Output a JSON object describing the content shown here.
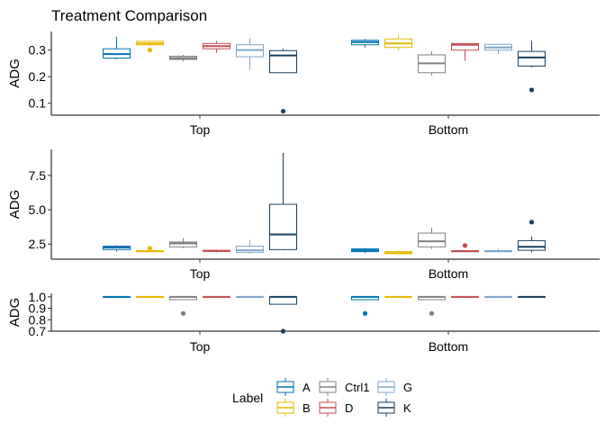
{
  "chart_data": {
    "type": "boxplot",
    "title": "Treatment Comparison",
    "legend": {
      "title": "Label",
      "placement": "bottom",
      "entries": [
        "A",
        "B",
        "Ctrl1",
        "D",
        "G",
        "K"
      ]
    },
    "colors": {
      "A": "#0072B2",
      "B": "#E6B800",
      "Ctrl1": "#7F7F7F",
      "D": "#C44E52",
      "G": "#7FA7CC",
      "K": "#173F5F"
    },
    "panels": [
      {
        "ylabel": "ADG",
        "ylim": [
          0.055,
          0.37
        ],
        "yticks": [
          0.1,
          0.2,
          0.3
        ],
        "ytick_labels": [
          "0.1",
          "0.2",
          "0.3"
        ],
        "categories": [
          "Top",
          "Bottom"
        ],
        "boxes": {
          "Top": [
            {
              "group": "A",
              "min": 0.265,
              "q1": 0.27,
              "median": 0.285,
              "q3": 0.305,
              "max": 0.35,
              "outliers": []
            },
            {
              "group": "B",
              "min": 0.315,
              "q1": 0.32,
              "median": 0.325,
              "q3": 0.333,
              "max": 0.335,
              "outliers": [
                0.3
              ]
            },
            {
              "group": "Ctrl1",
              "min": 0.258,
              "q1": 0.265,
              "median": 0.27,
              "q3": 0.277,
              "max": 0.282,
              "outliers": []
            },
            {
              "group": "D",
              "min": 0.29,
              "q1": 0.305,
              "median": 0.315,
              "q3": 0.325,
              "max": 0.335,
              "outliers": []
            },
            {
              "group": "G",
              "min": 0.225,
              "q1": 0.275,
              "median": 0.3,
              "q3": 0.32,
              "max": 0.345,
              "outliers": []
            },
            {
              "group": "K",
              "min": 0.213,
              "q1": 0.215,
              "median": 0.28,
              "q3": 0.298,
              "max": 0.305,
              "outliers": [
                0.07
              ]
            }
          ],
          "Bottom": [
            {
              "group": "A",
              "min": 0.31,
              "q1": 0.32,
              "median": 0.33,
              "q3": 0.337,
              "max": 0.342,
              "outliers": []
            },
            {
              "group": "B",
              "min": 0.3,
              "q1": 0.31,
              "median": 0.325,
              "q3": 0.342,
              "max": 0.355,
              "outliers": []
            },
            {
              "group": "Ctrl1",
              "min": 0.205,
              "q1": 0.215,
              "median": 0.25,
              "q3": 0.282,
              "max": 0.295,
              "outliers": []
            },
            {
              "group": "D",
              "min": 0.26,
              "q1": 0.3,
              "median": 0.32,
              "q3": 0.325,
              "max": 0.325,
              "outliers": []
            },
            {
              "group": "G",
              "min": 0.285,
              "q1": 0.3,
              "median": 0.31,
              "q3": 0.322,
              "max": 0.325,
              "outliers": []
            },
            {
              "group": "K",
              "min": 0.235,
              "q1": 0.24,
              "median": 0.272,
              "q3": 0.295,
              "max": 0.335,
              "outliers": [
                0.15
              ]
            }
          ]
        }
      },
      {
        "ylabel": "ADG",
        "ylim": [
          1.4,
          9.4
        ],
        "yticks": [
          2.5,
          5.0,
          7.5
        ],
        "ytick_labels": [
          "2.5",
          "5.0",
          "7.5"
        ],
        "categories": [
          "Top",
          "Bottom"
        ],
        "boxes": {
          "Top": [
            {
              "group": "A",
              "min": 1.95,
              "q1": 2.1,
              "median": 2.25,
              "q3": 2.35,
              "max": 2.42,
              "outliers": []
            },
            {
              "group": "B",
              "min": 1.9,
              "q1": 1.95,
              "median": 1.98,
              "q3": 2.02,
              "max": 2.05,
              "outliers": [
                2.2
              ]
            },
            {
              "group": "Ctrl1",
              "min": 2.2,
              "q1": 2.3,
              "median": 2.55,
              "q3": 2.65,
              "max": 2.95,
              "outliers": []
            },
            {
              "group": "D",
              "min": 1.9,
              "q1": 1.97,
              "median": 2.0,
              "q3": 2.05,
              "max": 2.1,
              "outliers": []
            },
            {
              "group": "G",
              "min": 1.8,
              "q1": 1.9,
              "median": 2.05,
              "q3": 2.35,
              "max": 2.8,
              "outliers": []
            },
            {
              "group": "K",
              "min": 2.05,
              "q1": 2.1,
              "median": 3.2,
              "q3": 5.4,
              "max": 9.15,
              "outliers": []
            }
          ],
          "Bottom": [
            {
              "group": "A",
              "min": 1.85,
              "q1": 1.95,
              "median": 2.05,
              "q3": 2.15,
              "max": 2.22,
              "outliers": []
            },
            {
              "group": "B",
              "min": 1.75,
              "q1": 1.8,
              "median": 1.85,
              "q3": 1.95,
              "max": 2.05,
              "outliers": []
            },
            {
              "group": "Ctrl1",
              "min": 2.15,
              "q1": 2.3,
              "median": 2.7,
              "q3": 3.3,
              "max": 3.7,
              "outliers": []
            },
            {
              "group": "D",
              "min": 1.9,
              "q1": 1.95,
              "median": 1.98,
              "q3": 2.02,
              "max": 2.05,
              "outliers": [
                2.4
              ]
            },
            {
              "group": "G",
              "min": 1.9,
              "q1": 1.95,
              "median": 1.98,
              "q3": 2.02,
              "max": 2.15,
              "outliers": []
            },
            {
              "group": "K",
              "min": 1.9,
              "q1": 2.05,
              "median": 2.3,
              "q3": 2.75,
              "max": 3.05,
              "outliers": [
                4.1
              ]
            }
          ]
        }
      },
      {
        "ylabel": "ADG",
        "ylim": [
          0.7,
          1.03
        ],
        "yticks": [
          0.7,
          0.8,
          0.9,
          1.0
        ],
        "ytick_labels": [
          "0.7",
          "0.8",
          "0.9",
          "1.0"
        ],
        "categories": [
          "Top",
          "Bottom"
        ],
        "boxes": {
          "Top": [
            {
              "group": "A",
              "min": 1.0,
              "q1": 1.0,
              "median": 1.0,
              "q3": 1.0,
              "max": 1.0,
              "outliers": []
            },
            {
              "group": "B",
              "min": 1.0,
              "q1": 1.0,
              "median": 1.0,
              "q3": 1.0,
              "max": 1.0,
              "outliers": []
            },
            {
              "group": "Ctrl1",
              "min": 0.975,
              "q1": 0.975,
              "median": 1.0,
              "q3": 1.0,
              "max": 1.0,
              "outliers": [
                0.855
              ]
            },
            {
              "group": "D",
              "min": 1.0,
              "q1": 1.0,
              "median": 1.0,
              "q3": 1.0,
              "max": 1.0,
              "outliers": []
            },
            {
              "group": "G",
              "min": 1.0,
              "q1": 1.0,
              "median": 1.0,
              "q3": 1.0,
              "max": 1.0,
              "outliers": []
            },
            {
              "group": "K",
              "min": 0.935,
              "q1": 0.935,
              "median": 1.0,
              "q3": 1.0,
              "max": 1.0,
              "outliers": [
                0.7
              ]
            }
          ],
          "Bottom": [
            {
              "group": "A",
              "min": 0.975,
              "q1": 0.975,
              "median": 1.0,
              "q3": 1.0,
              "max": 1.0,
              "outliers": [
                0.855
              ]
            },
            {
              "group": "B",
              "min": 1.0,
              "q1": 1.0,
              "median": 1.0,
              "q3": 1.0,
              "max": 1.0,
              "outliers": []
            },
            {
              "group": "Ctrl1",
              "min": 0.975,
              "q1": 0.975,
              "median": 1.0,
              "q3": 1.0,
              "max": 1.0,
              "outliers": [
                0.855
              ]
            },
            {
              "group": "D",
              "min": 1.0,
              "q1": 1.0,
              "median": 1.0,
              "q3": 1.0,
              "max": 1.0,
              "outliers": []
            },
            {
              "group": "G",
              "min": 1.0,
              "q1": 1.0,
              "median": 1.0,
              "q3": 1.0,
              "max": 1.0,
              "outliers": []
            },
            {
              "group": "K",
              "min": 1.0,
              "q1": 1.0,
              "median": 1.0,
              "q3": 1.0,
              "max": 1.0,
              "outliers": []
            }
          ]
        }
      }
    ]
  }
}
